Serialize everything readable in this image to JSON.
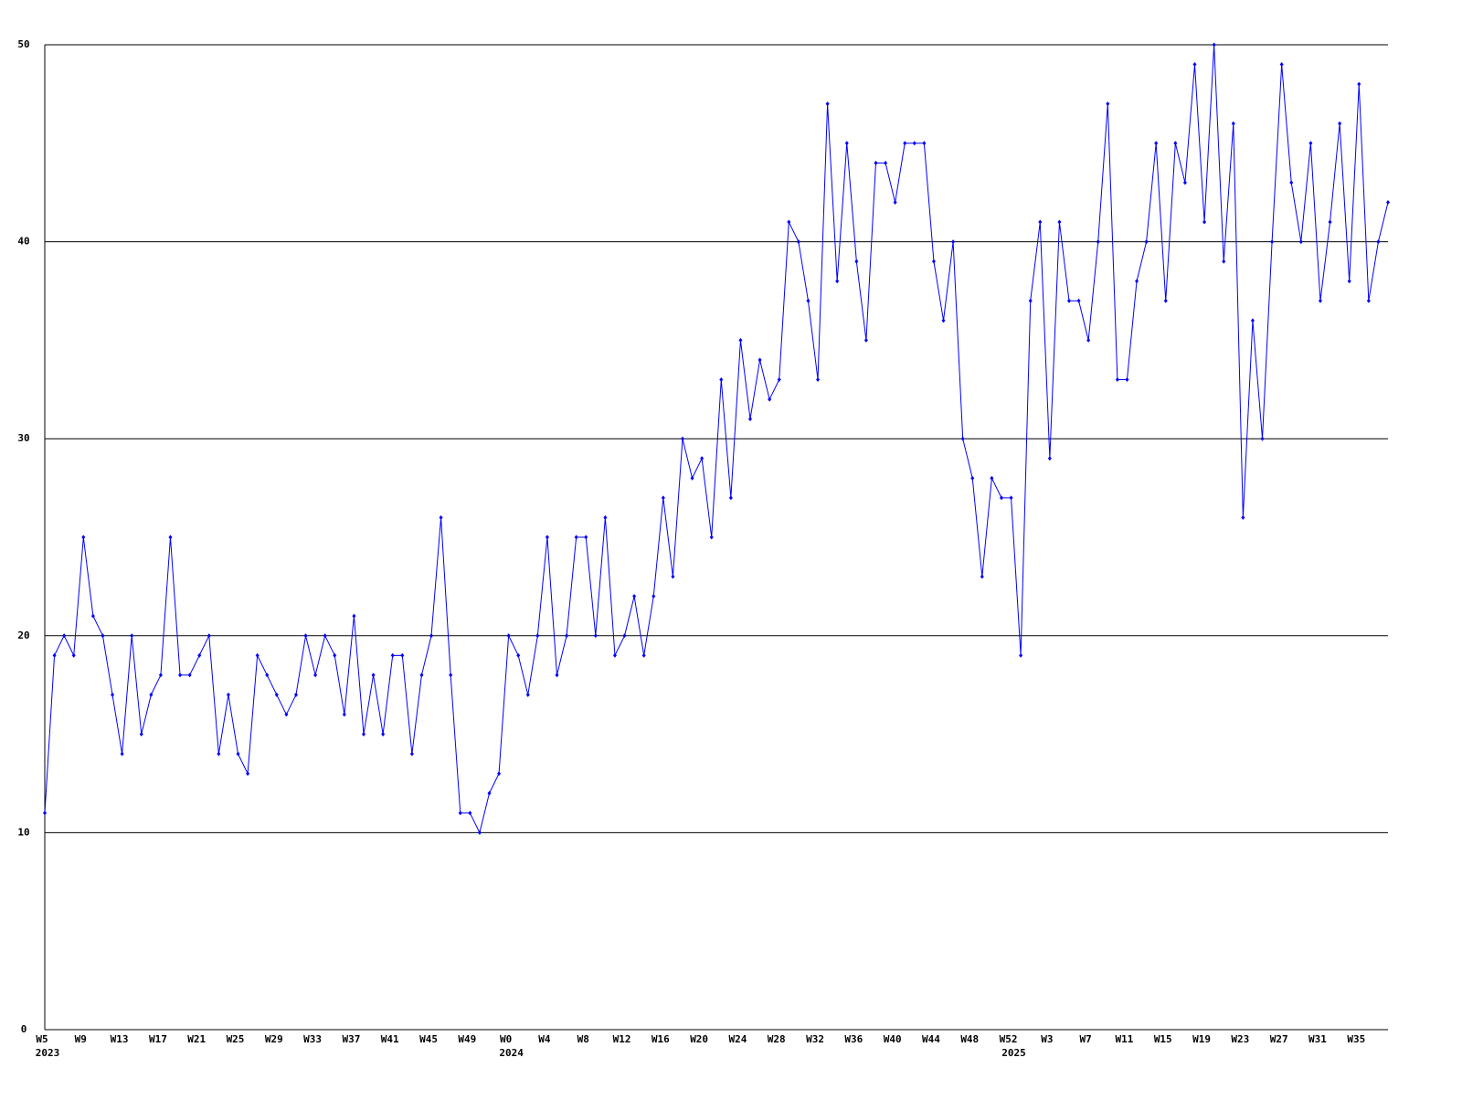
{
  "chart_data": {
    "type": "line",
    "categories": [
      "W5",
      null,
      null,
      null,
      "W9",
      null,
      null,
      null,
      "W13",
      null,
      null,
      null,
      "W17",
      null,
      null,
      null,
      "W21",
      null,
      null,
      null,
      "W25",
      null,
      null,
      null,
      "W29",
      null,
      null,
      null,
      "W33",
      null,
      null,
      null,
      "W37",
      null,
      null,
      null,
      "W41",
      null,
      null,
      null,
      "W45",
      null,
      null,
      null,
      "W49",
      null,
      null,
      null,
      "W0",
      null,
      null,
      null,
      "W4",
      null,
      null,
      null,
      "W8",
      null,
      null,
      null,
      "W12",
      null,
      null,
      null,
      "W16",
      null,
      null,
      null,
      "W20",
      null,
      null,
      null,
      "W24",
      null,
      null,
      null,
      "W28",
      null,
      null,
      null,
      "W32",
      null,
      null,
      null,
      "W36",
      null,
      null,
      null,
      "W40",
      null,
      null,
      null,
      "W44",
      null,
      null,
      null,
      "W48",
      null,
      null,
      null,
      "W52",
      null,
      null,
      null,
      "W3",
      null,
      null,
      null,
      "W7",
      null,
      null,
      null,
      "W11",
      null,
      null,
      null,
      "W15",
      null,
      null,
      null,
      "W19",
      null,
      null,
      null,
      "W23",
      null,
      null,
      null,
      "W27",
      null,
      null,
      null,
      "W31",
      null,
      null,
      null,
      "W35",
      null,
      null,
      null
    ],
    "years": [
      "2023",
      null,
      null,
      null,
      null,
      null,
      null,
      null,
      null,
      null,
      null,
      null,
      null,
      null,
      null,
      null,
      null,
      null,
      null,
      null,
      null,
      null,
      null,
      null,
      null,
      null,
      null,
      null,
      null,
      null,
      null,
      null,
      null,
      null,
      null,
      null,
      null,
      null,
      null,
      null,
      null,
      null,
      null,
      null,
      null,
      null,
      null,
      null,
      "2024",
      null,
      null,
      null,
      null,
      null,
      null,
      null,
      null,
      null,
      null,
      null,
      null,
      null,
      null,
      null,
      null,
      null,
      null,
      null,
      null,
      null,
      null,
      null,
      null,
      null,
      null,
      null,
      null,
      null,
      null,
      null,
      null,
      null,
      null,
      null,
      null,
      null,
      null,
      null,
      null,
      null,
      null,
      null,
      null,
      null,
      null,
      null,
      null,
      null,
      null,
      null,
      "2025",
      null,
      null,
      null,
      null,
      null,
      null,
      null,
      null,
      null,
      null,
      null,
      null,
      null,
      null,
      null,
      null,
      null,
      null,
      null,
      null,
      null,
      null,
      null,
      null,
      null,
      null,
      null,
      null,
      null,
      null,
      null,
      null,
      null,
      null,
      null,
      null,
      null,
      null
    ],
    "values": [
      11,
      19,
      20,
      19,
      25,
      21,
      20,
      17,
      14,
      20,
      15,
      17,
      18,
      25,
      18,
      18,
      19,
      20,
      14,
      17,
      14,
      13,
      19,
      18,
      17,
      16,
      17,
      20,
      18,
      20,
      19,
      16,
      21,
      15,
      18,
      15,
      19,
      19,
      14,
      18,
      20,
      26,
      18,
      11,
      11,
      10,
      12,
      13,
      20,
      19,
      17,
      20,
      25,
      18,
      20,
      25,
      25,
      20,
      26,
      19,
      20,
      22,
      19,
      22,
      27,
      23,
      30,
      28,
      29,
      25,
      33,
      27,
      35,
      31,
      34,
      32,
      33,
      41,
      40,
      37,
      33,
      47,
      38,
      45,
      39,
      35,
      44,
      44,
      42,
      45,
      45,
      45,
      39,
      36,
      40,
      30,
      28,
      23,
      28,
      27,
      27,
      19,
      37,
      41,
      29,
      41,
      37,
      37,
      35,
      40,
      47,
      33,
      33,
      38,
      40,
      45,
      37,
      45,
      43,
      49,
      41,
      50,
      39,
      46,
      26,
      36,
      30,
      40,
      49,
      43,
      40,
      45,
      37,
      41,
      46,
      38,
      48,
      37,
      40,
      42
    ],
    "color": "#0000ff",
    "ylim": [
      0,
      50
    ],
    "yticks": [
      0,
      10,
      20,
      30,
      40,
      50
    ],
    "grid": true
  }
}
